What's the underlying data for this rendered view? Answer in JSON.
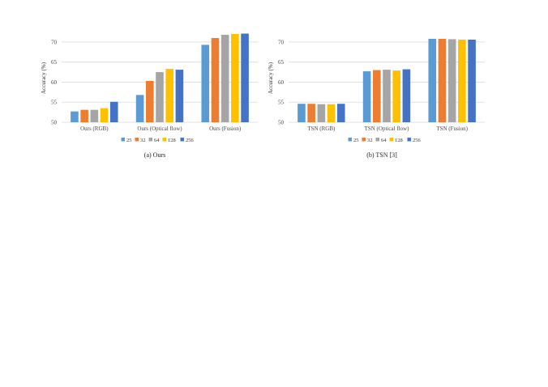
{
  "colors": [
    "#5b9bd5",
    "#ed7d31",
    "#a5a5a5",
    "#ffc000",
    "#4472c4"
  ],
  "chart_data": [
    {
      "type": "bar",
      "caption": "(a) Ours",
      "ylabel": "Accuracy (%)",
      "ylim": [
        50,
        72
      ],
      "yticks": [
        50,
        55,
        60,
        65,
        70
      ],
      "grid": true,
      "legend_placement": "bottom",
      "categories": [
        "Ours (RGB)",
        "Ours (Optical flow)",
        "Ours (Fusion)"
      ],
      "series": [
        {
          "name": "25",
          "values": [
            52.7,
            56.8,
            69.3
          ]
        },
        {
          "name": "32",
          "values": [
            53.1,
            60.3,
            71.0
          ]
        },
        {
          "name": "64",
          "values": [
            53.1,
            62.5,
            71.8
          ]
        },
        {
          "name": "128",
          "values": [
            53.5,
            63.3,
            72.0
          ]
        },
        {
          "name": "256",
          "values": [
            55.1,
            63.1,
            72.1
          ]
        }
      ]
    },
    {
      "type": "bar",
      "caption": "(b) TSN [3]",
      "ylabel": "Accuracy (%)",
      "ylim": [
        50,
        72
      ],
      "yticks": [
        50,
        55,
        60,
        65,
        70
      ],
      "grid": true,
      "legend_placement": "bottom",
      "categories": [
        "TSN (RGB)",
        "TSN (Optical flow)",
        "TSN (Fusion)"
      ],
      "series": [
        {
          "name": "25",
          "values": [
            54.6,
            62.7,
            70.8
          ]
        },
        {
          "name": "32",
          "values": [
            54.6,
            63.0,
            70.8
          ]
        },
        {
          "name": "64",
          "values": [
            54.5,
            63.1,
            70.7
          ]
        },
        {
          "name": "128",
          "values": [
            54.5,
            62.9,
            70.6
          ]
        },
        {
          "name": "256",
          "values": [
            54.6,
            63.2,
            70.6
          ]
        }
      ]
    }
  ]
}
